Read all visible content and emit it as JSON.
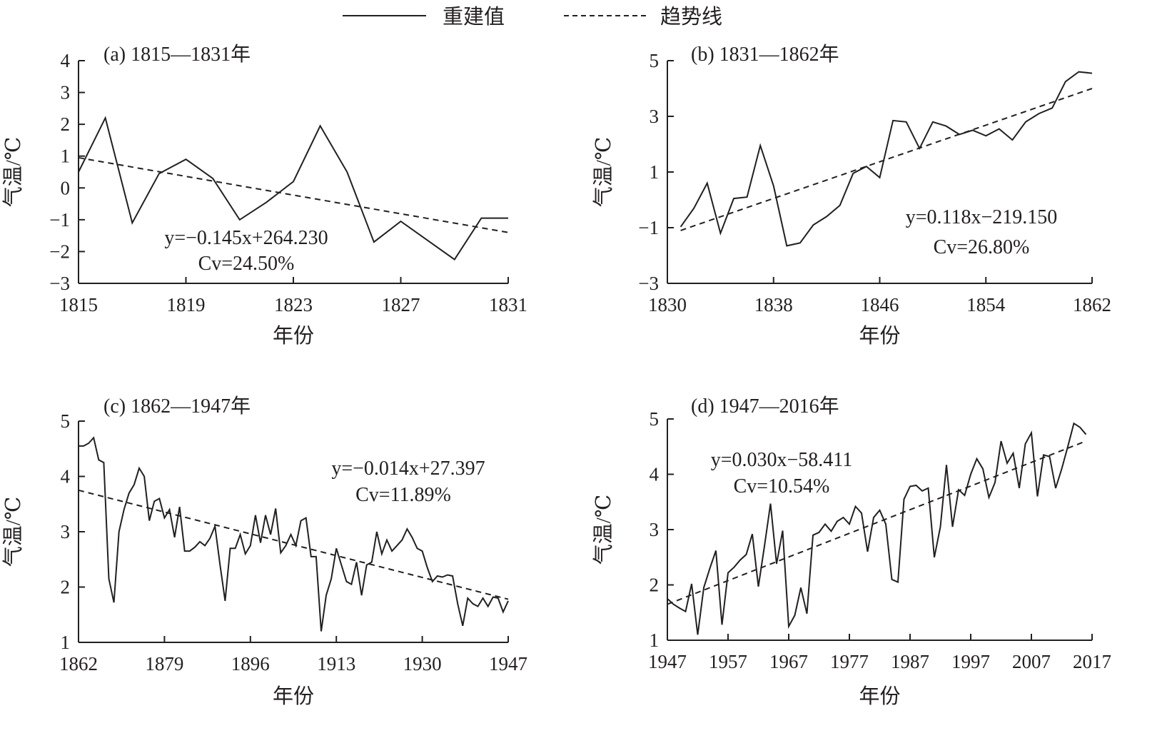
{
  "legend": {
    "reconstructed": "重建值",
    "trend": "趋势线"
  },
  "colors": {
    "line": "#231f20"
  },
  "chart_data": [
    {
      "type": "line",
      "title": "(a) 1815—1831年",
      "xlabel": "年份",
      "ylabel": "气温/℃",
      "xlim": [
        1815,
        1831
      ],
      "ylim": [
        -3,
        4
      ],
      "xticks": [
        1815,
        1819,
        1823,
        1827,
        1831
      ],
      "yticks": [
        -3,
        -2,
        -1,
        0,
        1,
        2,
        3,
        4
      ],
      "xtick_labels": [
        "1815",
        "1819",
        "1823",
        "1827",
        "1831"
      ],
      "ytick_labels": [
        "−3",
        "−2",
        "−1",
        "0",
        "1",
        "2",
        "3",
        "4"
      ],
      "equation": "y=−0.145x+264.230",
      "cv": "Cv=24.50%",
      "x_start": 1815,
      "values": [
        0.5,
        2.2,
        -1.1,
        0.45,
        0.9,
        0.3,
        -1.0,
        -0.45,
        0.2,
        1.95,
        0.5,
        -1.7,
        -1.05,
        -1.65,
        -2.25,
        -0.95,
        -0.95
      ],
      "trend": [
        [
          1815,
          0.95
        ],
        [
          1831,
          -1.4
        ]
      ]
    },
    {
      "type": "line",
      "title": "(b) 1831—1862年",
      "xlabel": "年份",
      "ylabel": "气温/℃",
      "xlim": [
        1830,
        1862
      ],
      "ylim": [
        -3,
        5
      ],
      "xticks": [
        1830,
        1838,
        1846,
        1854,
        1862
      ],
      "yticks": [
        -3,
        -1,
        1,
        3,
        5
      ],
      "xtick_labels": [
        "1830",
        "1838",
        "1846",
        "1854",
        "1862"
      ],
      "ytick_labels": [
        "−3",
        "−1",
        "1",
        "3",
        "5"
      ],
      "equation": "y=0.118x−219.150",
      "cv": "Cv=26.80%",
      "x_start": 1831,
      "values": [
        -0.97,
        -0.3,
        0.6,
        -1.2,
        0.05,
        0.1,
        1.95,
        0.5,
        -1.65,
        -1.55,
        -0.9,
        -0.6,
        -0.2,
        0.95,
        1.2,
        0.8,
        2.85,
        2.8,
        1.85,
        2.8,
        2.65,
        2.35,
        2.5,
        2.3,
        2.55,
        2.15,
        2.8,
        3.1,
        3.3,
        4.25,
        4.6,
        4.55
      ],
      "trend": [
        [
          1831,
          -1.1
        ],
        [
          1862,
          4.0
        ]
      ]
    },
    {
      "type": "line",
      "title": "(c) 1862—1947年",
      "xlabel": "年份",
      "ylabel": "气温/℃",
      "xlim": [
        1862,
        1947
      ],
      "ylim": [
        1,
        5
      ],
      "xticks": [
        1862,
        1879,
        1896,
        1913,
        1930,
        1947
      ],
      "yticks": [
        1,
        2,
        3,
        4,
        5
      ],
      "xtick_labels": [
        "1862",
        "1879",
        "1896",
        "1913",
        "1930",
        "1947"
      ],
      "ytick_labels": [
        "1",
        "2",
        "3",
        "4",
        "5"
      ],
      "equation": "y=−0.014x+27.397",
      "cv": "Cv=11.89%",
      "x_start": 1862,
      "values": [
        4.55,
        4.55,
        4.6,
        4.7,
        4.3,
        4.25,
        2.15,
        1.72,
        3.0,
        3.4,
        3.7,
        3.85,
        4.15,
        4.0,
        3.2,
        3.55,
        3.6,
        3.25,
        3.4,
        2.9,
        3.45,
        2.65,
        2.65,
        2.72,
        2.82,
        2.75,
        2.88,
        3.1,
        2.4,
        1.75,
        2.7,
        2.7,
        2.95,
        2.6,
        2.75,
        3.3,
        2.8,
        3.3,
        2.95,
        3.42,
        2.62,
        2.75,
        2.95,
        2.75,
        3.2,
        3.25,
        2.55,
        2.55,
        1.2,
        1.85,
        2.15,
        2.7,
        2.4,
        2.1,
        2.05,
        2.45,
        1.85,
        2.4,
        2.45,
        3.0,
        2.6,
        2.85,
        2.65,
        2.75,
        2.85,
        3.05,
        2.9,
        2.7,
        2.65,
        2.35,
        2.1,
        2.2,
        2.18,
        2.22,
        2.2,
        1.7,
        1.3,
        1.8,
        1.7,
        1.65,
        1.8,
        1.65,
        1.82,
        1.8,
        1.55,
        1.75
      ],
      "trend": [
        [
          1862,
          3.75
        ],
        [
          1947,
          1.78
        ]
      ]
    },
    {
      "type": "line",
      "title": "(d) 1947—2016年",
      "xlabel": "年份",
      "ylabel": "气温/℃",
      "xlim": [
        1947,
        2017
      ],
      "ylim": [
        1,
        5
      ],
      "xticks": [
        1947,
        1957,
        1967,
        1977,
        1987,
        1997,
        2007,
        2017
      ],
      "yticks": [
        1,
        2,
        3,
        4,
        5
      ],
      "xtick_labels": [
        "1947",
        "1957",
        "1967",
        "1977",
        "1987",
        "1997",
        "2007",
        "2017"
      ],
      "ytick_labels": [
        "1",
        "2",
        "3",
        "4",
        "5"
      ],
      "equation": "y=0.030x−58.411",
      "cv": "Cv=10.54%",
      "x_start": 1947,
      "values": [
        1.75,
        1.65,
        1.58,
        1.52,
        2.02,
        1.1,
        1.95,
        2.3,
        2.62,
        1.28,
        2.22,
        2.32,
        2.45,
        2.55,
        2.92,
        1.97,
        2.7,
        3.47,
        2.38,
        2.98,
        1.25,
        1.45,
        1.95,
        1.48,
        2.9,
        2.95,
        3.1,
        2.97,
        3.15,
        3.22,
        3.1,
        3.42,
        3.3,
        2.6,
        3.22,
        3.35,
        3.1,
        2.1,
        2.05,
        3.55,
        3.78,
        3.8,
        3.7,
        3.75,
        2.5,
        3.05,
        4.17,
        3.05,
        3.72,
        3.62,
        4.0,
        4.28,
        4.1,
        3.58,
        3.85,
        4.6,
        4.2,
        4.38,
        3.75,
        4.55,
        4.75,
        3.6,
        4.35,
        4.32,
        3.75,
        4.1,
        4.5,
        4.92,
        4.85,
        4.72
      ],
      "trend": [
        [
          1947,
          1.65
        ],
        [
          2016,
          4.6
        ]
      ]
    }
  ]
}
